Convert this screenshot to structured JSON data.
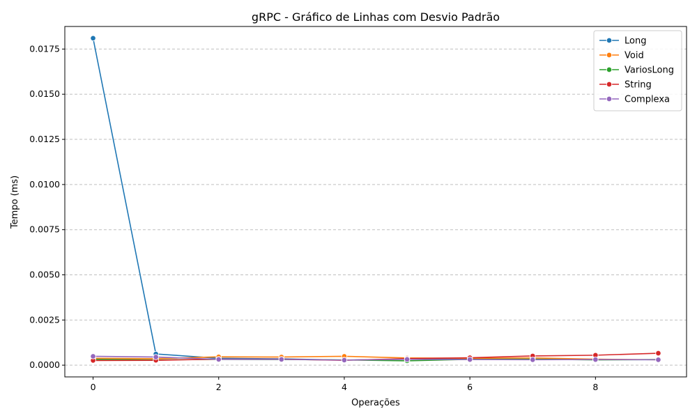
{
  "chart_data": {
    "type": "line",
    "title": "gRPC - Gráfico de Linhas com Desvio Padrão",
    "xlabel": "Operações",
    "ylabel": "Tempo (ms)",
    "xlim": [
      -0.45,
      9.45
    ],
    "ylim": [
      -0.00065,
      0.01875
    ],
    "x": [
      0,
      1,
      2,
      3,
      4,
      5,
      6,
      7,
      8,
      9
    ],
    "x_ticks": [
      0,
      2,
      4,
      6,
      8
    ],
    "y_ticks": [
      0.0,
      0.0025,
      0.005,
      0.0075,
      0.01,
      0.0125,
      0.015,
      0.0175
    ],
    "y_tick_labels": [
      "0.0000",
      "0.0025",
      "0.0050",
      "0.0075",
      "0.0100",
      "0.0125",
      "0.0150",
      "0.0175"
    ],
    "grid": "y-dashed",
    "legend_position": "top-right",
    "series": [
      {
        "name": "Long",
        "color": "#1f77b4",
        "values": [
          0.0181,
          0.00062,
          0.00038,
          0.00035,
          0.00028,
          0.00033,
          0.00035,
          0.00032,
          0.00031,
          0.0003
        ]
      },
      {
        "name": "Void",
        "color": "#ff7f0e",
        "values": [
          0.00038,
          0.00036,
          0.00046,
          0.00045,
          0.00049,
          0.0004,
          0.00038,
          0.0004,
          0.00033,
          0.0003
        ]
      },
      {
        "name": "VariosLong",
        "color": "#2ca02c",
        "values": [
          0.00032,
          0.00029,
          0.00032,
          0.00031,
          0.00029,
          0.00024,
          0.00032,
          0.00033,
          0.00029,
          0.00031
        ]
      },
      {
        "name": "String",
        "color": "#d62728",
        "values": [
          0.00026,
          0.00027,
          0.00033,
          0.00033,
          0.00027,
          0.00036,
          0.00041,
          0.00051,
          0.00055,
          0.00066
        ]
      },
      {
        "name": "Complexa",
        "color": "#9467bd",
        "values": [
          0.00049,
          0.00045,
          0.00032,
          0.00032,
          0.00028,
          0.00032,
          0.00031,
          0.0003,
          0.00031,
          0.0003
        ]
      }
    ]
  }
}
